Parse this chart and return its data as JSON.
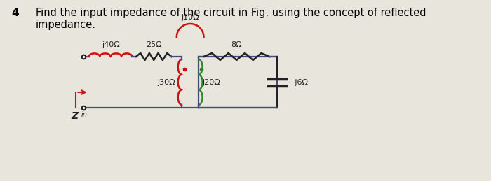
{
  "problem_number": "4",
  "problem_text_line1": "Find the input impedance of the circuit in Fig. using the concept of reflected",
  "problem_text_line2": "impedance.",
  "bg_color": "#e8e6dc",
  "text_color": "#000000",
  "wire_color": "#4a4a7a",
  "inductor_red": "#cc1111",
  "inductor_green": "#2a8a2a",
  "comp_color": "#222222",
  "j40_label": "j40Ω",
  "r25_label": "25Ω",
  "j10_label": "j10Ω",
  "r8_label": "8Ω",
  "j30_label": "j30Ω",
  "j20_label": "j20Ω",
  "jm6_label": "−j6Ω",
  "zin_label": "Z",
  "zin_sub": "in",
  "arrow_color": "#cc1111"
}
